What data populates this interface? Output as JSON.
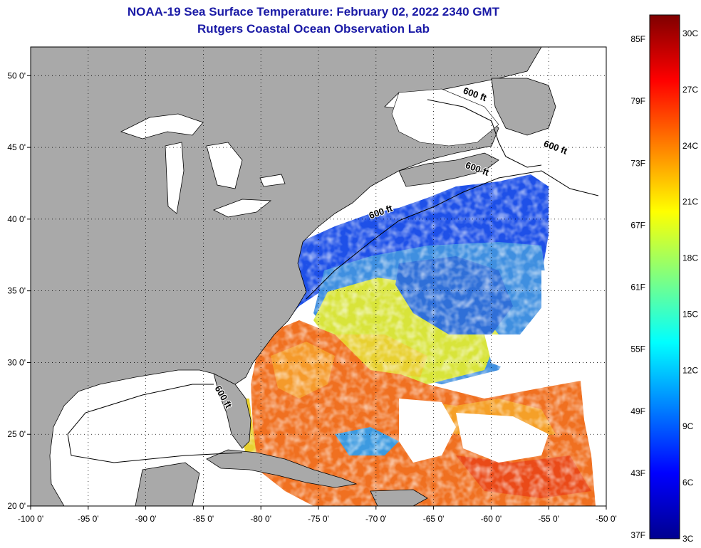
{
  "title": {
    "line1": "NOAA-19 Sea Surface Temperature:  February 02, 2022 2340 GMT",
    "line2": "Rutgers Coastal Ocean Observation Lab"
  },
  "map": {
    "lon_range": [
      -100,
      -50
    ],
    "lat_range": [
      20,
      52
    ],
    "lon_ticks": [
      {
        "value": -100,
        "label": "-100 0'"
      },
      {
        "value": -95,
        "label": "-95 0'"
      },
      {
        "value": -90,
        "label": "-90 0'"
      },
      {
        "value": -85,
        "label": "-85 0'"
      },
      {
        "value": -80,
        "label": "-80 0'"
      },
      {
        "value": -75,
        "label": "-75 0'"
      },
      {
        "value": -70,
        "label": "-70 0'"
      },
      {
        "value": -65,
        "label": "-65 0'"
      },
      {
        "value": -60,
        "label": "-60 0'"
      },
      {
        "value": -55,
        "label": "-55 0'"
      },
      {
        "value": -50,
        "label": "-50 0'"
      }
    ],
    "lat_ticks": [
      {
        "value": 50,
        "label": "50 0'"
      },
      {
        "value": 45,
        "label": "45 0'"
      },
      {
        "value": 40,
        "label": "40 0'"
      },
      {
        "value": 35,
        "label": "35 0'"
      },
      {
        "value": 30,
        "label": "30 0'"
      },
      {
        "value": 25,
        "label": "25 0'"
      },
      {
        "value": 20,
        "label": "20 0'"
      }
    ],
    "grid": "dotted",
    "contour_labels": [
      {
        "text": "600 ft",
        "lon": -61.5,
        "lat": 48.5
      },
      {
        "text": "600 ft",
        "lon": -54.5,
        "lat": 44.8
      },
      {
        "text": "600 ft",
        "lon": -61.3,
        "lat": 43.3
      },
      {
        "text": "600 ft",
        "lon": -69.5,
        "lat": 40.3
      },
      {
        "text": "600 ft",
        "lon": -83.5,
        "lat": 27.5
      }
    ],
    "land_color": "#a9a9a9",
    "no_data_color": "#ffffff"
  },
  "colorbar": {
    "fahrenheit_labels": [
      "85F",
      "79F",
      "73F",
      "67F",
      "61F",
      "55F",
      "49F",
      "43F",
      "37F"
    ],
    "celsius_labels": [
      "30C",
      "27C",
      "24C",
      "21C",
      "18C",
      "15C",
      "12C",
      "9C",
      "6C",
      "3C"
    ],
    "colors": [
      "#7f0000",
      "#ff0000",
      "#ff8000",
      "#ffff00",
      "#80ff80",
      "#00ffff",
      "#0080ff",
      "#0000ff",
      "#00008f"
    ]
  }
}
